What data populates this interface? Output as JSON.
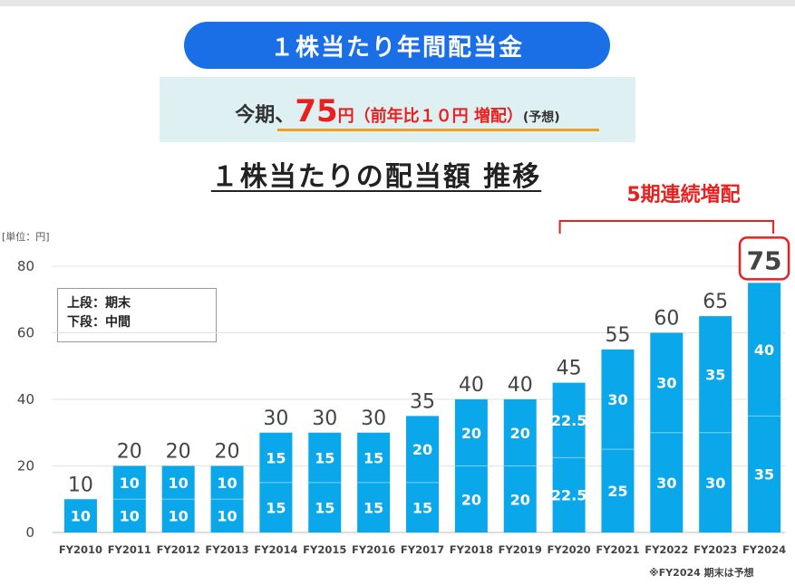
{
  "header": {
    "title": "１株当たり年間配当金",
    "forecast_prefix": "今期、",
    "forecast_value": "75",
    "forecast_unit": "円",
    "forecast_increase": "（前年比１０円 増配）",
    "forecast_note": "(予想)",
    "subtitle": "１株当たりの配当額 推移"
  },
  "annotations": {
    "streak": "5期連続増配",
    "unit": "[単位：円]",
    "legend_upper": "上段：期末",
    "legend_lower": "下段：中間",
    "footnote": "※FY2024 期末は予想"
  },
  "colors": {
    "bar": "#0aa7ea",
    "title_bg": "#1a6fe6",
    "highlight": "#e8201f",
    "forecast_bg": "#dff0f3",
    "underline": "#f0a020"
  },
  "chart_data": {
    "type": "bar",
    "stacked": true,
    "categories": [
      "FY2010",
      "FY2011",
      "FY2012",
      "FY2013",
      "FY2014",
      "FY2015",
      "FY2016",
      "FY2017",
      "FY2018",
      "FY2019",
      "FY2020",
      "FY2021",
      "FY2022",
      "FY2023",
      "FY2024"
    ],
    "series": [
      {
        "name": "中間",
        "values": [
          10,
          10,
          10,
          10,
          15,
          15,
          15,
          15,
          20,
          20,
          22.5,
          25,
          30,
          30,
          35
        ]
      },
      {
        "name": "期末",
        "values": [
          null,
          10,
          10,
          10,
          15,
          15,
          15,
          20,
          20,
          20,
          22.5,
          30,
          30,
          35,
          40
        ]
      }
    ],
    "totals": [
      "10",
      "20",
      "20",
      "20",
      "30",
      "30",
      "30",
      "35",
      "40",
      "40",
      "45",
      "55",
      "60",
      "65",
      "75"
    ],
    "segment_labels": [
      [
        "10",
        "10",
        "10",
        "10",
        "15",
        "15",
        "15",
        "15",
        "20",
        "20",
        "22.5",
        "25",
        "30",
        "30",
        "35"
      ],
      [
        "",
        "10",
        "10",
        "10",
        "15",
        "15",
        "15",
        "20",
        "20",
        "20",
        "22.5",
        "30",
        "30",
        "35",
        "40"
      ]
    ],
    "yticks": [
      "0",
      "20",
      "40",
      "60",
      "80"
    ],
    "ylim": [
      0,
      80
    ],
    "grid": true,
    "highlight_category": "FY2024",
    "streak_range": [
      "FY2020",
      "FY2024"
    ]
  }
}
